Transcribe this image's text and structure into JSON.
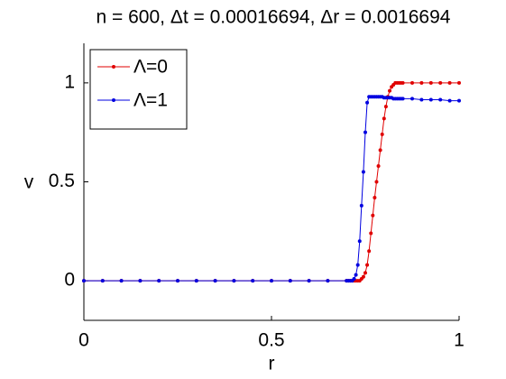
{
  "chart_data": {
    "type": "line",
    "title": "n = 600, Δt = 0.00016694, Δr = 0.0016694",
    "xlabel": "r",
    "ylabel": "v",
    "x": [
      0,
      0.05,
      0.1,
      0.15,
      0.2,
      0.25,
      0.3,
      0.35,
      0.4,
      0.45,
      0.5,
      0.55,
      0.6,
      0.65,
      0.7,
      0.705,
      0.71,
      0.715,
      0.72,
      0.725,
      0.73,
      0.735,
      0.74,
      0.745,
      0.75,
      0.755,
      0.76,
      0.765,
      0.77,
      0.775,
      0.78,
      0.785,
      0.79,
      0.795,
      0.8,
      0.805,
      0.81,
      0.815,
      0.82,
      0.825,
      0.83,
      0.835,
      0.84,
      0.845,
      0.85,
      0.875,
      0.9,
      0.925,
      0.95,
      0.975,
      1
    ],
    "series": [
      {
        "name": "Λ=0",
        "color": "#e00000",
        "values": [
          0,
          0,
          0,
          0,
          0,
          0,
          0,
          0,
          0,
          0,
          0,
          0,
          0,
          0,
          0,
          0,
          0,
          0,
          0,
          0,
          0,
          0,
          0.01,
          0.02,
          0.04,
          0.08,
          0.15,
          0.24,
          0.33,
          0.42,
          0.5,
          0.58,
          0.66,
          0.74,
          0.82,
          0.88,
          0.93,
          0.96,
          0.98,
          0.99,
          1,
          1,
          1,
          1,
          1,
          1,
          1,
          1,
          1,
          1,
          1
        ]
      },
      {
        "name": "Λ=1",
        "color": "#0000e0",
        "values": [
          0,
          0,
          0,
          0,
          0,
          0,
          0,
          0,
          0,
          0,
          0,
          0,
          0,
          0,
          0,
          0,
          0,
          0,
          0.01,
          0.03,
          0.08,
          0.2,
          0.38,
          0.55,
          0.75,
          0.9,
          0.93,
          0.93,
          0.93,
          0.93,
          0.93,
          0.93,
          0.93,
          0.93,
          0.925,
          0.925,
          0.925,
          0.925,
          0.925,
          0.92,
          0.92,
          0.92,
          0.92,
          0.92,
          0.92,
          0.92,
          0.915,
          0.915,
          0.915,
          0.91,
          0.91
        ]
      }
    ],
    "xlim": [
      0,
      1
    ],
    "ylim": [
      -0.2,
      1.2
    ],
    "xticks": [
      0,
      0.5,
      1
    ],
    "yticks": [
      0,
      0.5,
      1
    ],
    "legend": "upper left"
  }
}
